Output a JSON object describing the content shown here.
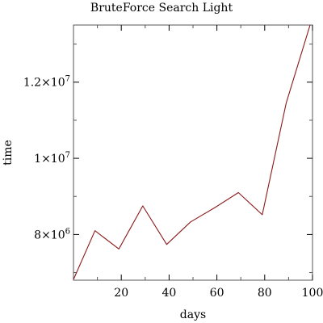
{
  "chart_data": {
    "type": "line",
    "title": "BruteForce Search Light",
    "xlabel": "days",
    "ylabel": "time",
    "xlim": [
      0,
      100
    ],
    "ylim": [
      6800000,
      13500000
    ],
    "x_ticks": [
      20,
      40,
      60,
      80,
      100
    ],
    "x_tick_labels": [
      "20",
      "40",
      "60",
      "80",
      "100"
    ],
    "y_ticks": [
      8000000,
      10000000,
      12000000
    ],
    "y_tick_labels": [
      {
        "mantissa": "8×10",
        "exp": "6"
      },
      {
        "mantissa": "1×10",
        "exp": "7"
      },
      {
        "mantissa": "1.2×10",
        "exp": "7"
      }
    ],
    "grid": false,
    "series": [
      {
        "color": "#8b1a1a",
        "x": [
          0,
          9,
          19,
          29,
          39,
          49,
          59,
          69,
          79,
          89,
          99
        ],
        "y": [
          6820000,
          8100000,
          7620000,
          8750000,
          7740000,
          8330000,
          8700000,
          9100000,
          8520000,
          11450000,
          13500000
        ]
      }
    ]
  }
}
